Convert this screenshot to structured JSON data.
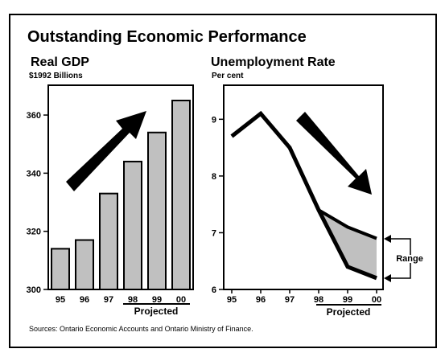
{
  "title": "Outstanding Economic Performance",
  "source_note": "Sources:  Ontario Economic Accounts and Ontario Ministry of Finance.",
  "chart_data": [
    {
      "type": "bar",
      "title": "Real GDP",
      "subtitle": "$1992 Billions",
      "categories": [
        "95",
        "96",
        "97",
        "98",
        "99",
        "00"
      ],
      "values": [
        314,
        317,
        333,
        344,
        354,
        365
      ],
      "ylim": [
        300,
        365
      ],
      "yticks": [
        300,
        320,
        340,
        360
      ],
      "projected_label": "Projected",
      "projected_categories": [
        "98",
        "99",
        "00"
      ],
      "arrow": "up-right",
      "grid": false,
      "colors": {
        "bar": "#c0c0c0",
        "arrow": "#000000"
      }
    },
    {
      "type": "line",
      "title": "Unemployment Rate",
      "subtitle": "Per cent",
      "categories": [
        "95",
        "96",
        "97",
        "98",
        "99",
        "00"
      ],
      "series": [
        {
          "values": [
            8.7,
            9.1,
            8.5,
            7.4,
            6.4,
            6.2
          ]
        },
        {
          "values": [
            null,
            null,
            null,
            7.4,
            7.1,
            6.9
          ]
        }
      ],
      "band": {
        "categories": [
          "98",
          "99",
          "00"
        ],
        "upper": [
          7.4,
          7.1,
          6.9
        ],
        "lower": [
          7.4,
          6.4,
          6.2
        ]
      },
      "range_label": "Range",
      "ylim": [
        6,
        9.6
      ],
      "yticks": [
        6,
        7,
        8,
        9
      ],
      "projected_label": "Projected",
      "projected_categories": [
        "98",
        "99",
        "00"
      ],
      "arrow": "down-right",
      "grid": false,
      "colors": {
        "line": "#000000",
        "band": "#c0c0c0",
        "arrow": "#000000"
      }
    }
  ]
}
